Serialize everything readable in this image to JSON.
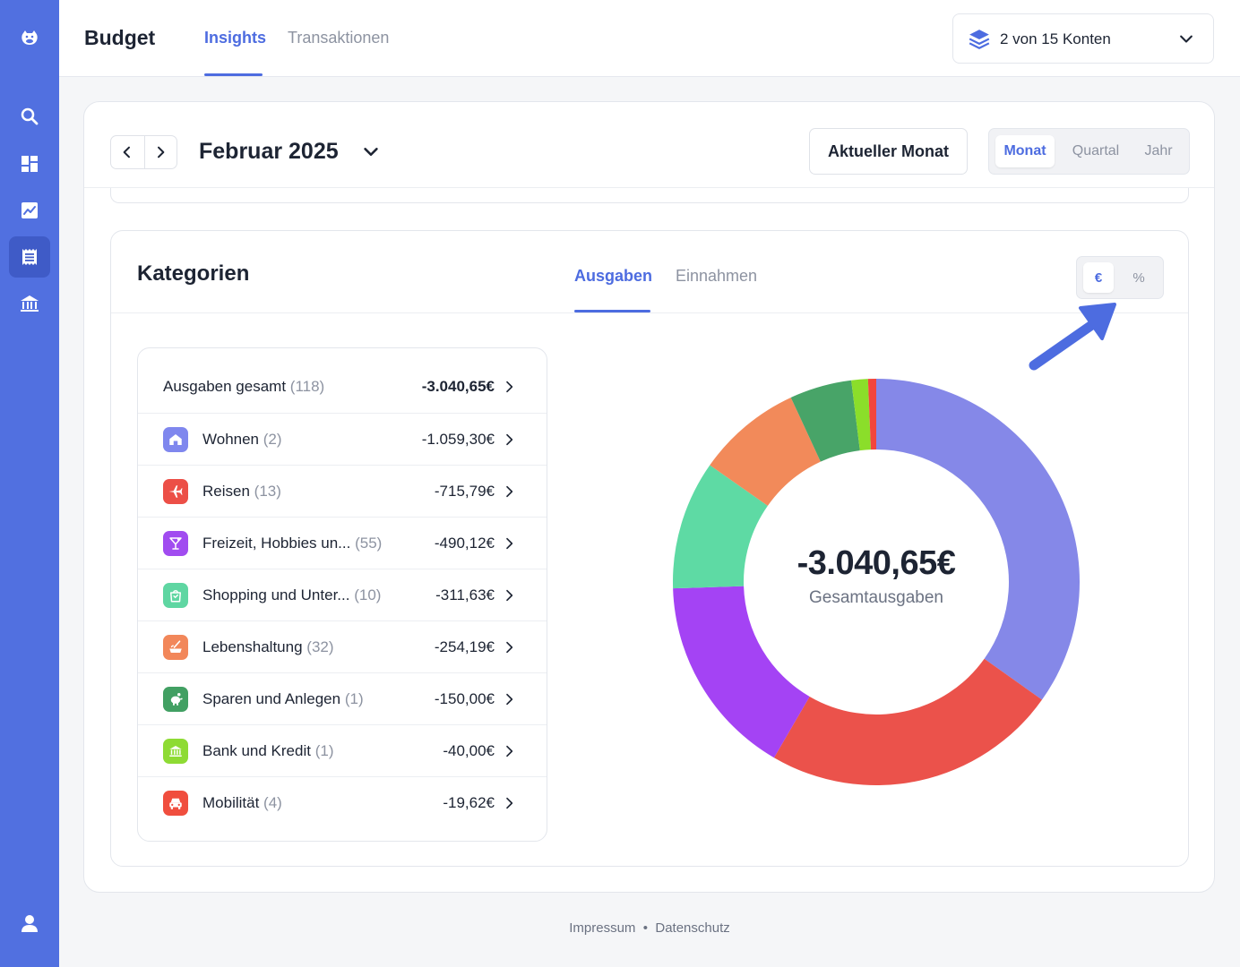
{
  "app": {
    "title": "Budget"
  },
  "header_tabs": [
    {
      "label": "Insights",
      "active": true
    },
    {
      "label": "Transaktionen",
      "active": false
    }
  ],
  "account_selector": {
    "label": "2 von 15 Konten",
    "icon": "layers-icon"
  },
  "sidebar": {
    "items": [
      {
        "name": "logo",
        "icon": "hippo-logo-icon"
      },
      {
        "name": "search",
        "icon": "search-icon"
      },
      {
        "name": "dashboard",
        "icon": "dashboard-icon"
      },
      {
        "name": "analytics",
        "icon": "chart-icon"
      },
      {
        "name": "budget",
        "icon": "receipt-icon",
        "active": true
      },
      {
        "name": "bank",
        "icon": "bank-icon"
      },
      {
        "name": "profile",
        "icon": "user-icon"
      }
    ]
  },
  "period": {
    "title": "Februar 2025",
    "current_button": "Aktueller Monat",
    "options": [
      {
        "label": "Monat",
        "active": true
      },
      {
        "label": "Quartal",
        "active": false
      },
      {
        "label": "Jahr",
        "active": false
      }
    ]
  },
  "categories": {
    "title": "Kategorien",
    "tabs": [
      {
        "label": "Ausgaben",
        "active": true
      },
      {
        "label": "Einnahmen",
        "active": false
      }
    ],
    "unit_toggle": [
      {
        "label": "€",
        "active": true
      },
      {
        "label": "%",
        "active": false
      }
    ],
    "total": {
      "label": "Ausgaben gesamt",
      "count": "(118)",
      "amount": "-3.040,65€"
    },
    "items": [
      {
        "label": "Wohnen",
        "count": "(2)",
        "amount": "-1.059,30€",
        "value": 1059.3,
        "color": "#8588e8",
        "icon": "house-icon",
        "icon_color": "#7f87ee"
      },
      {
        "label": "Reisen",
        "count": "(13)",
        "amount": "-715,79€",
        "value": 715.79,
        "color": "#eb524b",
        "icon": "plane-icon",
        "icon_color": "#ec4f47"
      },
      {
        "label": "Freizeit, Hobbies un...",
        "count": "(55)",
        "amount": "-490,12€",
        "value": 490.12,
        "color": "#a443f4",
        "icon": "cocktail-icon",
        "icon_color": "#a14cf0"
      },
      {
        "label": "Shopping und Unter...",
        "count": "(10)",
        "amount": "-311,63€",
        "value": 311.63,
        "color": "#5edaa4",
        "icon": "shopping-bag-icon",
        "icon_color": "#5fd6a2"
      },
      {
        "label": "Lebenshaltung",
        "count": "(32)",
        "amount": "-254,19€",
        "value": 254.19,
        "color": "#f28a5a",
        "icon": "cooking-icon",
        "icon_color": "#f2875a"
      },
      {
        "label": "Sparen und Anlegen",
        "count": "(1)",
        "amount": "-150,00€",
        "value": 150.0,
        "color": "#48a468",
        "icon": "piggy-bank-icon",
        "icon_color": "#42a063"
      },
      {
        "label": "Bank und Kredit",
        "count": "(1)",
        "amount": "-40,00€",
        "value": 40.0,
        "color": "#8bde2a",
        "icon": "bank-icon",
        "icon_color": "#8edb34"
      },
      {
        "label": "Mobilität",
        "count": "(4)",
        "amount": "-19,62€",
        "value": 19.62,
        "color": "#f2463c",
        "icon": "car-icon",
        "icon_color": "#f04e3e"
      }
    ],
    "donut": {
      "value": "-3.040,65€",
      "label": "Gesamtausgaben"
    }
  },
  "footer": {
    "impressum": "Impressum",
    "separator": "•",
    "datenschutz": "Datenschutz"
  }
}
